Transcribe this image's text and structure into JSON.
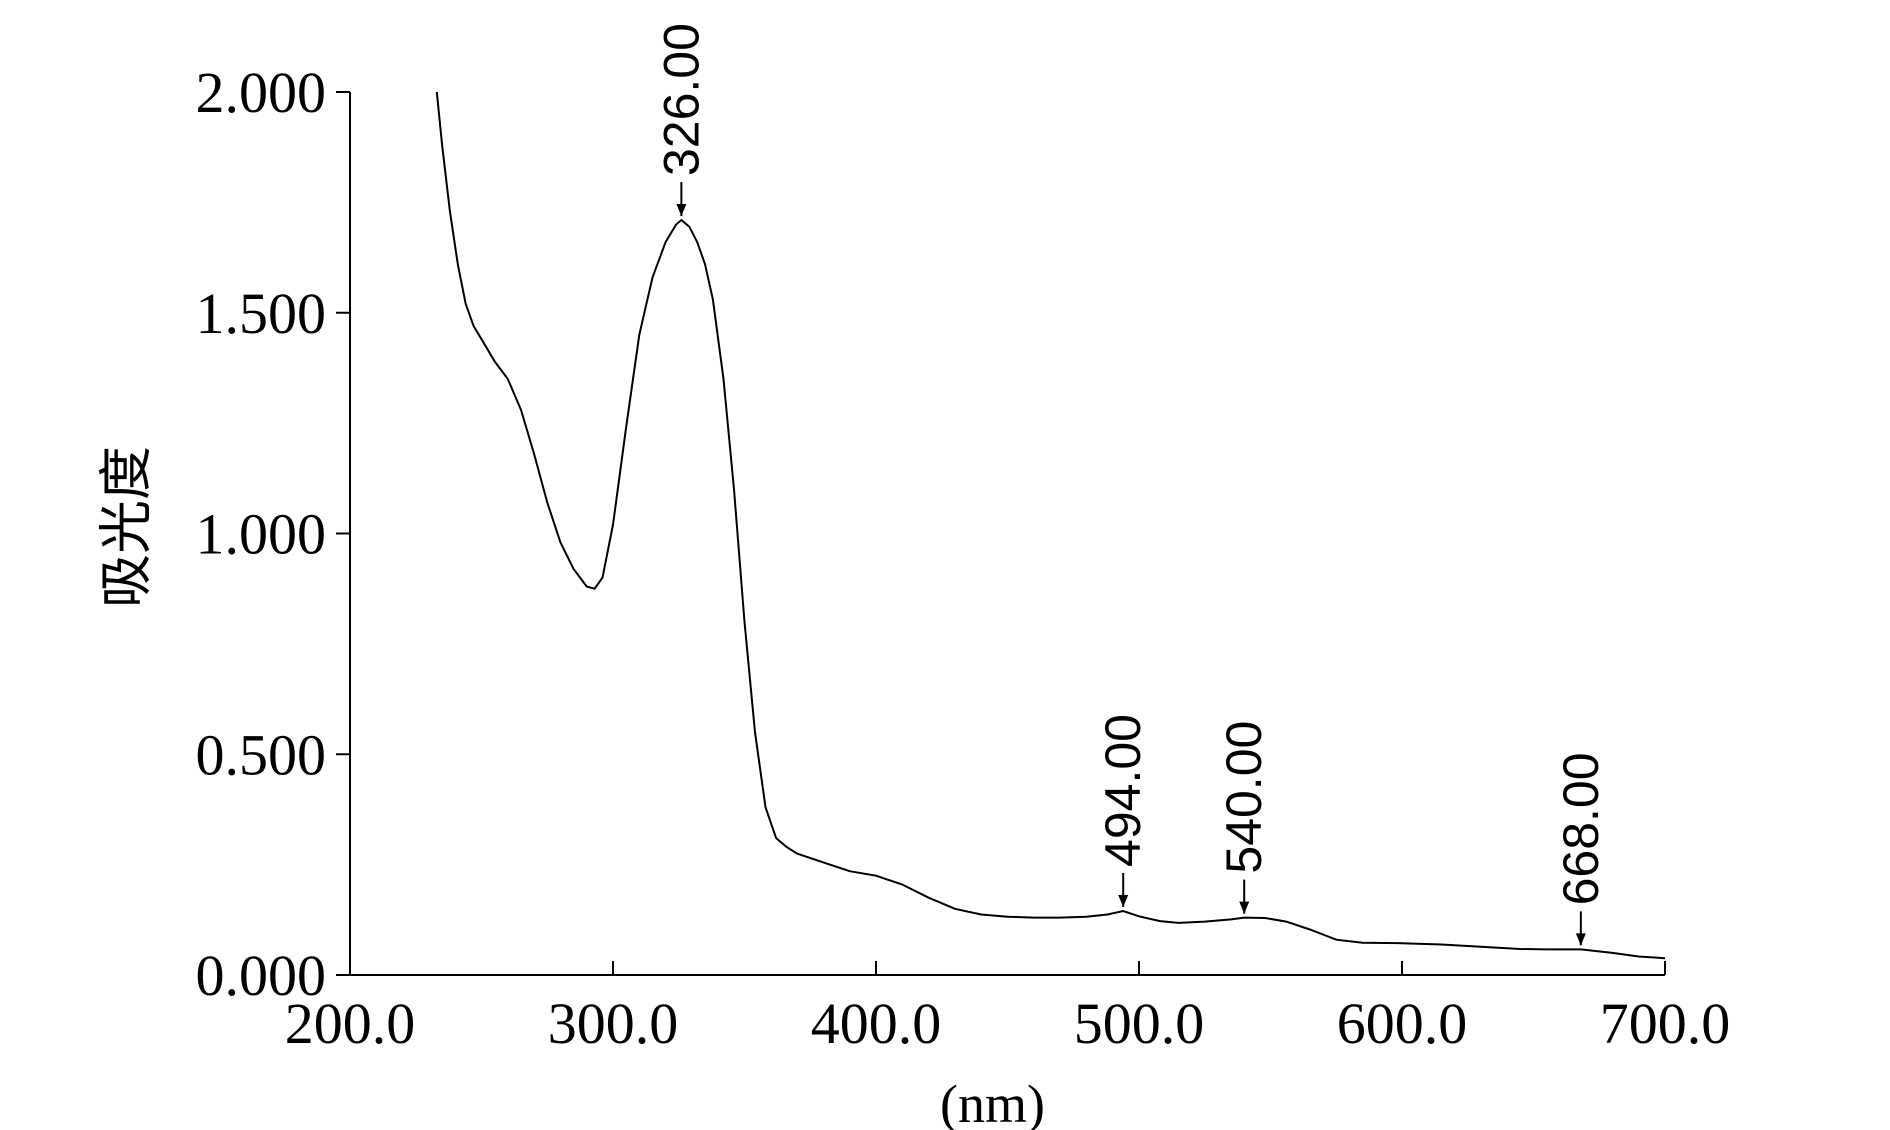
{
  "chart_data": {
    "type": "line",
    "title": "",
    "xlabel": "(nm)",
    "ylabel": "吸光度",
    "xlim": [
      200,
      700
    ],
    "ylim": [
      0,
      2
    ],
    "grid": false,
    "x_ticks": [
      200,
      300,
      400,
      500,
      600,
      700
    ],
    "x_tick_labels": [
      "200.0",
      "300.0",
      "400.0",
      "500.0",
      "600.0",
      "700.0"
    ],
    "y_ticks": [
      0,
      0.5,
      1,
      1.5,
      2
    ],
    "y_tick_labels": [
      "0.000",
      "0.500",
      "1.000",
      "1.500",
      "2.000"
    ],
    "series": [
      {
        "x": [
          233,
          235,
          238,
          241,
          244,
          247,
          250,
          255,
          260,
          265,
          270,
          275,
          280,
          285,
          290,
          293,
          296,
          300,
          305,
          310,
          315,
          320,
          324,
          326,
          329,
          332,
          335,
          338,
          342,
          346,
          350,
          354,
          358,
          362,
          366,
          370,
          380,
          390,
          400,
          410,
          420,
          430,
          440,
          450,
          460,
          470,
          480,
          488,
          494,
          500,
          508,
          515,
          525,
          535,
          540,
          548,
          556,
          565,
          575,
          585,
          600,
          615,
          630,
          645,
          655,
          668,
          680,
          690,
          700
        ],
        "y": [
          2.0,
          1.88,
          1.73,
          1.61,
          1.52,
          1.47,
          1.44,
          1.39,
          1.35,
          1.28,
          1.18,
          1.07,
          0.98,
          0.92,
          0.88,
          0.875,
          0.9,
          1.02,
          1.24,
          1.45,
          1.58,
          1.66,
          1.7,
          1.71,
          1.695,
          1.66,
          1.61,
          1.53,
          1.35,
          1.1,
          0.8,
          0.55,
          0.38,
          0.31,
          0.29,
          0.275,
          0.255,
          0.235,
          0.225,
          0.205,
          0.175,
          0.15,
          0.137,
          0.132,
          0.13,
          0.13,
          0.132,
          0.137,
          0.145,
          0.133,
          0.122,
          0.118,
          0.121,
          0.126,
          0.13,
          0.129,
          0.121,
          0.103,
          0.08,
          0.073,
          0.072,
          0.069,
          0.064,
          0.059,
          0.058,
          0.058,
          0.05,
          0.042,
          0.038
        ]
      }
    ],
    "peaks": [
      {
        "x": 326,
        "y": 1.71,
        "label": "326.00"
      },
      {
        "x": 494,
        "y": 0.145,
        "label": "494.00"
      },
      {
        "x": 540,
        "y": 0.13,
        "label": "540.00"
      },
      {
        "x": 668,
        "y": 0.058,
        "label": "668.00"
      }
    ]
  }
}
